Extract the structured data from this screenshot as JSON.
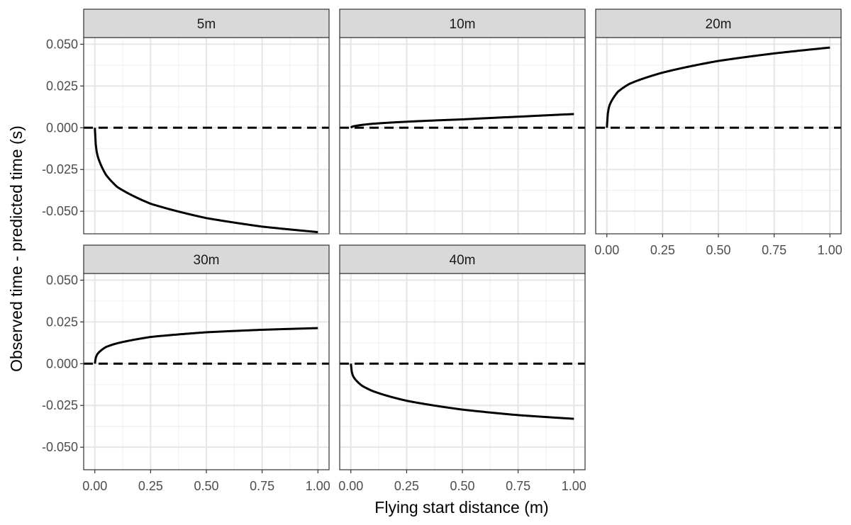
{
  "chart_data": {
    "type": "line",
    "xlabel": "Flying start distance (m)",
    "ylabel": "Observed time - predicted time (s)",
    "xlim": [
      -0.05,
      1.05
    ],
    "ylim": [
      -0.0635,
      0.054
    ],
    "x_ticks": [
      "0.00",
      "0.25",
      "0.50",
      "0.75",
      "1.00"
    ],
    "y_ticks": [
      "0.050",
      "0.025",
      "0.000",
      "-0.025",
      "-0.050"
    ],
    "x_tick_values": [
      0,
      0.25,
      0.5,
      0.75,
      1
    ],
    "y_tick_values": [
      0.05,
      0.025,
      0,
      -0.025,
      -0.05
    ],
    "grid": true,
    "reference_line": {
      "y": 0,
      "style": "dashed"
    },
    "panels": [
      {
        "label": "5m",
        "x": [
          0,
          0.01,
          0.05,
          0.1,
          0.25,
          0.5,
          0.75,
          1.0
        ],
        "y": [
          0,
          -0.0157,
          -0.0282,
          -0.0354,
          -0.0455,
          -0.0541,
          -0.0592,
          -0.0625
        ]
      },
      {
        "label": "10m",
        "x": [
          0,
          0.01,
          0.05,
          0.1,
          0.25,
          0.5,
          0.75,
          1.0
        ],
        "y": [
          0,
          0.0008,
          0.0017,
          0.0024,
          0.0036,
          0.005,
          0.0066,
          0.0082
        ]
      },
      {
        "label": "20m",
        "x": [
          0,
          0.01,
          0.05,
          0.1,
          0.25,
          0.5,
          0.75,
          1.0
        ],
        "y": [
          0,
          0.0128,
          0.0216,
          0.0262,
          0.033,
          0.04,
          0.0445,
          0.048
        ]
      },
      {
        "label": "30m",
        "x": [
          0,
          0.01,
          0.05,
          0.1,
          0.25,
          0.5,
          0.75,
          1.0
        ],
        "y": [
          0,
          0.0055,
          0.01,
          0.0122,
          0.016,
          0.0188,
          0.0203,
          0.0213
        ]
      },
      {
        "label": "40m",
        "x": [
          0,
          0.01,
          0.05,
          0.1,
          0.25,
          0.5,
          0.75,
          1.0
        ],
        "y": [
          0,
          -0.0075,
          -0.0132,
          -0.0165,
          -0.0222,
          -0.0275,
          -0.0308,
          -0.033
        ]
      }
    ]
  }
}
